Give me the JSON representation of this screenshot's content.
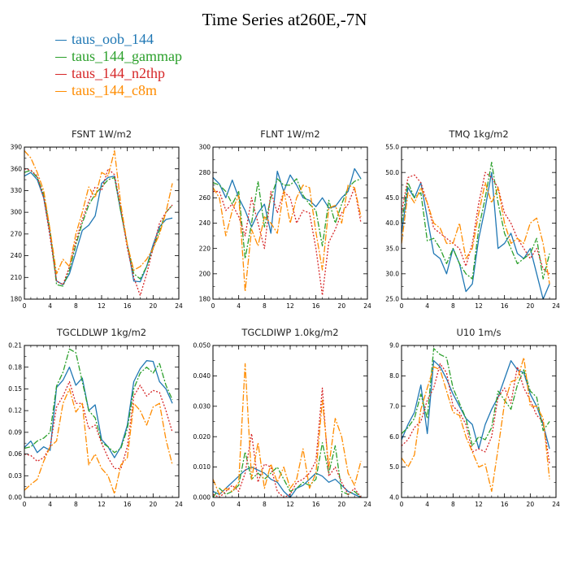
{
  "title": "Time Series at260E,-7N",
  "legend": [
    {
      "name": "taus_oob_144",
      "color": "#1f77b4"
    },
    {
      "name": "taus_144_gammap",
      "color": "#2ca02c"
    },
    {
      "name": "taus_144_n2thp",
      "color": "#d62728"
    },
    {
      "name": "taus_144_c8m",
      "color": "#ff8c00"
    }
  ],
  "chart_data": [
    {
      "type": "line",
      "title": "FSNT   1W/m2",
      "x": [
        0,
        1,
        2,
        3,
        4,
        5,
        6,
        7,
        8,
        9,
        10,
        11,
        12,
        13,
        14,
        15,
        16,
        17,
        18,
        19,
        20,
        21,
        22,
        23
      ],
      "xlim": [
        0,
        24
      ],
      "xticks": [
        "0",
        "4",
        "8",
        "12",
        "16",
        "20",
        "24"
      ],
      "ylim": [
        180,
        390
      ],
      "yticks": [
        "180",
        "210",
        "240",
        "270",
        "300",
        "330",
        "360",
        "390"
      ],
      "series": [
        {
          "name": "taus_oob_144",
          "values": [
            350,
            355,
            345,
            320,
            270,
            205,
            200,
            215,
            245,
            275,
            282,
            295,
            340,
            348,
            350,
            300,
            255,
            205,
            204,
            225,
            255,
            280,
            290,
            292
          ]
        },
        {
          "name": "taus_144_gammap",
          "values": [
            355,
            358,
            348,
            325,
            275,
            200,
            198,
            220,
            255,
            285,
            310,
            325,
            335,
            345,
            348,
            300,
            255,
            215,
            208,
            225,
            250,
            275,
            300,
            310
          ]
        },
        {
          "name": "taus_144_n2thp",
          "values": [
            360,
            358,
            350,
            320,
            265,
            205,
            200,
            225,
            260,
            290,
            315,
            335,
            330,
            360,
            352,
            305,
            250,
            210,
            185,
            215,
            250,
            285,
            300,
            310
          ]
        },
        {
          "name": "taus_144_c8m",
          "values": [
            385,
            375,
            355,
            330,
            275,
            215,
            235,
            225,
            270,
            300,
            335,
            320,
            355,
            350,
            385,
            310,
            255,
            220,
            225,
            235,
            250,
            270,
            300,
            340
          ]
        }
      ]
    },
    {
      "type": "line",
      "title": "FLNT   1W/m2",
      "x": [
        0,
        1,
        2,
        3,
        4,
        5,
        6,
        7,
        8,
        9,
        10,
        11,
        12,
        13,
        14,
        15,
        16,
        17,
        18,
        19,
        20,
        21,
        22,
        23
      ],
      "xlim": [
        0,
        24
      ],
      "xticks": [
        "0",
        "4",
        "8",
        "12",
        "16",
        "20",
        "24"
      ],
      "ylim": [
        180,
        300
      ],
      "yticks": [
        "180",
        "200",
        "220",
        "240",
        "260",
        "280",
        "300"
      ],
      "series": [
        {
          "name": "taus_oob_144",
          "values": [
            276,
            271,
            260,
            274,
            260,
            250,
            237,
            248,
            255,
            232,
            281,
            265,
            278,
            270,
            260,
            258,
            253,
            260,
            252,
            253,
            260,
            265,
            283,
            275
          ]
        },
        {
          "name": "taus_144_gammap",
          "values": [
            272,
            270,
            265,
            255,
            265,
            212,
            240,
            273,
            237,
            260,
            275,
            270,
            270,
            275,
            262,
            255,
            250,
            222,
            258,
            240,
            255,
            268,
            273,
            275
          ]
        },
        {
          "name": "taus_144_n2thp",
          "values": [
            265,
            265,
            250,
            255,
            245,
            230,
            260,
            240,
            220,
            265,
            248,
            265,
            260,
            240,
            250,
            248,
            220,
            183,
            225,
            235,
            248,
            255,
            268,
            240
          ]
        },
        {
          "name": "taus_144_c8m",
          "values": [
            268,
            260,
            230,
            250,
            262,
            186,
            235,
            222,
            245,
            240,
            232,
            266,
            240,
            260,
            270,
            268,
            233,
            203,
            252,
            254,
            240,
            270,
            268,
            245
          ]
        }
      ]
    },
    {
      "type": "line",
      "title": "TMQ   1kg/m2",
      "x": [
        0,
        1,
        2,
        3,
        4,
        5,
        6,
        7,
        8,
        9,
        10,
        11,
        12,
        13,
        14,
        15,
        16,
        17,
        18,
        19,
        20,
        21,
        22,
        23
      ],
      "xlim": [
        0,
        24
      ],
      "xticks": [
        "0",
        "4",
        "8",
        "12",
        "16",
        "20",
        "24"
      ],
      "ylim": [
        25.0,
        55.0
      ],
      "yticks": [
        "25.0",
        "30.0",
        "35.0",
        "40.0",
        "45.0",
        "50.0",
        "55.0"
      ],
      "series": [
        {
          "name": "taus_oob_144",
          "values": [
            38.0,
            47.0,
            45.0,
            48.0,
            41.0,
            34.0,
            33.0,
            30.0,
            35.0,
            32.0,
            26.5,
            28.0,
            37.0,
            43.0,
            50.0,
            35.0,
            36.0,
            38.0,
            34.0,
            33.0,
            35.0,
            30.0,
            25.0,
            28.0
          ]
        },
        {
          "name": "taus_144_gammap",
          "values": [
            40.0,
            48.0,
            45.0,
            46.0,
            36.5,
            37.0,
            35.0,
            32.0,
            35.0,
            32.0,
            30.0,
            29.0,
            39.0,
            45.0,
            52.0,
            44.0,
            38.0,
            35.0,
            32.0,
            33.0,
            34.0,
            37.0,
            29.0,
            34.0
          ]
        },
        {
          "name": "taus_144_n2thp",
          "values": [
            42.0,
            49.0,
            49.5,
            48.0,
            44.0,
            39.0,
            38.0,
            37.0,
            36.0,
            35.0,
            31.5,
            36.0,
            44.0,
            50.0,
            49.0,
            47.0,
            42.0,
            40.0,
            37.0,
            35.0,
            33.0,
            35.0,
            31.0,
            30.0
          ]
        },
        {
          "name": "taus_144_c8m",
          "values": [
            36.0,
            46.0,
            44.0,
            47.0,
            44.0,
            40.0,
            39.0,
            36.0,
            36.0,
            40.0,
            33.0,
            35.0,
            42.0,
            48.0,
            44.0,
            47.0,
            40.0,
            36.0,
            37.0,
            36.0,
            40.0,
            41.0,
            36.0,
            28.0
          ]
        }
      ]
    },
    {
      "type": "line",
      "title": "TGCLDLWP   1kg/m2",
      "x": [
        0,
        1,
        2,
        3,
        4,
        5,
        6,
        7,
        8,
        9,
        10,
        11,
        12,
        13,
        14,
        15,
        16,
        17,
        18,
        19,
        20,
        21,
        22,
        23
      ],
      "xlim": [
        0,
        24
      ],
      "xticks": [
        "0",
        "4",
        "8",
        "12",
        "16",
        "20",
        "24"
      ],
      "ylim": [
        0.0,
        0.21
      ],
      "yticks": [
        "0.00",
        "0.03",
        "0.06",
        "0.09",
        "0.12",
        "0.15",
        "0.18",
        "0.21"
      ],
      "series": [
        {
          "name": "taus_oob_144",
          "values": [
            0.069,
            0.078,
            0.062,
            0.07,
            0.065,
            0.152,
            0.162,
            0.18,
            0.155,
            0.165,
            0.12,
            0.128,
            0.08,
            0.07,
            0.055,
            0.07,
            0.1,
            0.16,
            0.178,
            0.189,
            0.188,
            0.16,
            0.15,
            0.13
          ]
        },
        {
          "name": "taus_144_gammap",
          "values": [
            0.068,
            0.07,
            0.078,
            0.082,
            0.09,
            0.154,
            0.173,
            0.205,
            0.2,
            0.16,
            0.12,
            0.11,
            0.076,
            0.07,
            0.062,
            0.068,
            0.095,
            0.15,
            0.172,
            0.18,
            0.172,
            0.185,
            0.155,
            0.135
          ]
        },
        {
          "name": "taus_144_n2thp",
          "values": [
            0.06,
            0.058,
            0.05,
            0.055,
            0.07,
            0.125,
            0.14,
            0.16,
            0.13,
            0.13,
            0.095,
            0.1,
            0.075,
            0.055,
            0.04,
            0.04,
            0.07,
            0.14,
            0.155,
            0.14,
            0.148,
            0.145,
            0.12,
            0.09
          ]
        },
        {
          "name": "taus_144_c8m",
          "values": [
            0.01,
            0.018,
            0.025,
            0.05,
            0.07,
            0.078,
            0.13,
            0.15,
            0.118,
            0.13,
            0.045,
            0.06,
            0.04,
            0.03,
            0.005,
            0.045,
            0.055,
            0.13,
            0.12,
            0.1,
            0.125,
            0.13,
            0.08,
            0.045
          ]
        }
      ]
    },
    {
      "type": "line",
      "title": "TGCLDIWP   1.0kg/m2",
      "x": [
        0,
        1,
        2,
        3,
        4,
        5,
        6,
        7,
        8,
        9,
        10,
        11,
        12,
        13,
        14,
        15,
        16,
        17,
        18,
        19,
        20,
        21,
        22,
        23
      ],
      "xlim": [
        0,
        24
      ],
      "xticks": [
        "0",
        "4",
        "8",
        "12",
        "16",
        "20",
        "24"
      ],
      "ylim": [
        0.0,
        0.05
      ],
      "yticks": [
        "0.000",
        "0.010",
        "0.020",
        "0.030",
        "0.040",
        "0.050"
      ],
      "series": [
        {
          "name": "taus_oob_144",
          "values": [
            0.002,
            0.001,
            0.003,
            0.005,
            0.007,
            0.009,
            0.01,
            0.009,
            0.008,
            0.006,
            0.005,
            0.002,
            0.0,
            0.003,
            0.004,
            0.006,
            0.008,
            0.007,
            0.005,
            0.006,
            0.004,
            0.002,
            0.001,
            0.0
          ]
        },
        {
          "name": "taus_144_gammap",
          "values": [
            0.0,
            0.003,
            0.001,
            0.002,
            0.004,
            0.015,
            0.006,
            0.008,
            0.006,
            0.008,
            0.01,
            0.006,
            0.002,
            0.003,
            0.005,
            0.004,
            0.006,
            0.018,
            0.008,
            0.017,
            0.002,
            0.001,
            0.002,
            0.0
          ]
        },
        {
          "name": "taus_144_n2thp",
          "values": [
            0.001,
            0.0,
            0.002,
            0.004,
            0.002,
            0.008,
            0.021,
            0.005,
            0.011,
            0.01,
            0.002,
            0.0,
            0.001,
            0.005,
            0.006,
            0.008,
            0.012,
            0.036,
            0.007,
            0.01,
            0.005,
            0.001,
            0.003,
            0.0
          ]
        },
        {
          "name": "taus_144_c8m",
          "values": [
            0.006,
            0.001,
            0.003,
            0.002,
            0.005,
            0.044,
            0.006,
            0.018,
            0.003,
            0.011,
            0.005,
            0.01,
            0.003,
            0.006,
            0.016,
            0.003,
            0.008,
            0.032,
            0.01,
            0.026,
            0.02,
            0.008,
            0.004,
            0.012
          ]
        }
      ]
    },
    {
      "type": "line",
      "title": "U10   1m/s",
      "x": [
        0,
        1,
        2,
        3,
        4,
        5,
        6,
        7,
        8,
        9,
        10,
        11,
        12,
        13,
        14,
        15,
        16,
        17,
        18,
        19,
        20,
        21,
        22,
        23
      ],
      "xlim": [
        0,
        24
      ],
      "xticks": [
        "0",
        "4",
        "8",
        "12",
        "16",
        "20",
        "24"
      ],
      "ylim": [
        4.0,
        9.0
      ],
      "yticks": [
        "4.0",
        "5.0",
        "6.0",
        "7.0",
        "8.0",
        "9.0"
      ],
      "series": [
        {
          "name": "taus_oob_144",
          "values": [
            5.9,
            6.4,
            6.8,
            7.7,
            6.1,
            8.5,
            8.3,
            7.9,
            7.4,
            7.0,
            6.6,
            6.4,
            5.6,
            6.4,
            6.9,
            7.3,
            7.9,
            8.5,
            8.2,
            8.1,
            7.4,
            7.0,
            6.4,
            5.6
          ]
        },
        {
          "name": "taus_144_gammap",
          "values": [
            6.1,
            6.3,
            6.6,
            7.4,
            6.6,
            8.9,
            8.7,
            8.6,
            7.6,
            7.1,
            6.6,
            5.7,
            6.0,
            5.9,
            6.3,
            7.5,
            7.2,
            6.9,
            7.7,
            8.2,
            7.5,
            7.3,
            6.2,
            6.5
          ]
        },
        {
          "name": "taus_144_n2thp",
          "values": [
            5.7,
            5.9,
            6.3,
            6.5,
            7.2,
            7.6,
            8.4,
            8.1,
            7.0,
            6.8,
            6.4,
            5.5,
            5.6,
            5.5,
            6.0,
            7.3,
            7.6,
            7.1,
            8.3,
            7.6,
            7.2,
            6.7,
            6.5,
            5.1
          ]
        },
        {
          "name": "taus_144_c8m",
          "values": [
            5.3,
            5.0,
            5.4,
            6.9,
            7.6,
            8.3,
            8.2,
            7.5,
            6.8,
            6.7,
            6.0,
            5.5,
            5.0,
            5.1,
            4.2,
            5.6,
            7.1,
            7.8,
            7.9,
            8.6,
            7.0,
            7.0,
            6.6,
            4.6
          ]
        }
      ]
    }
  ]
}
